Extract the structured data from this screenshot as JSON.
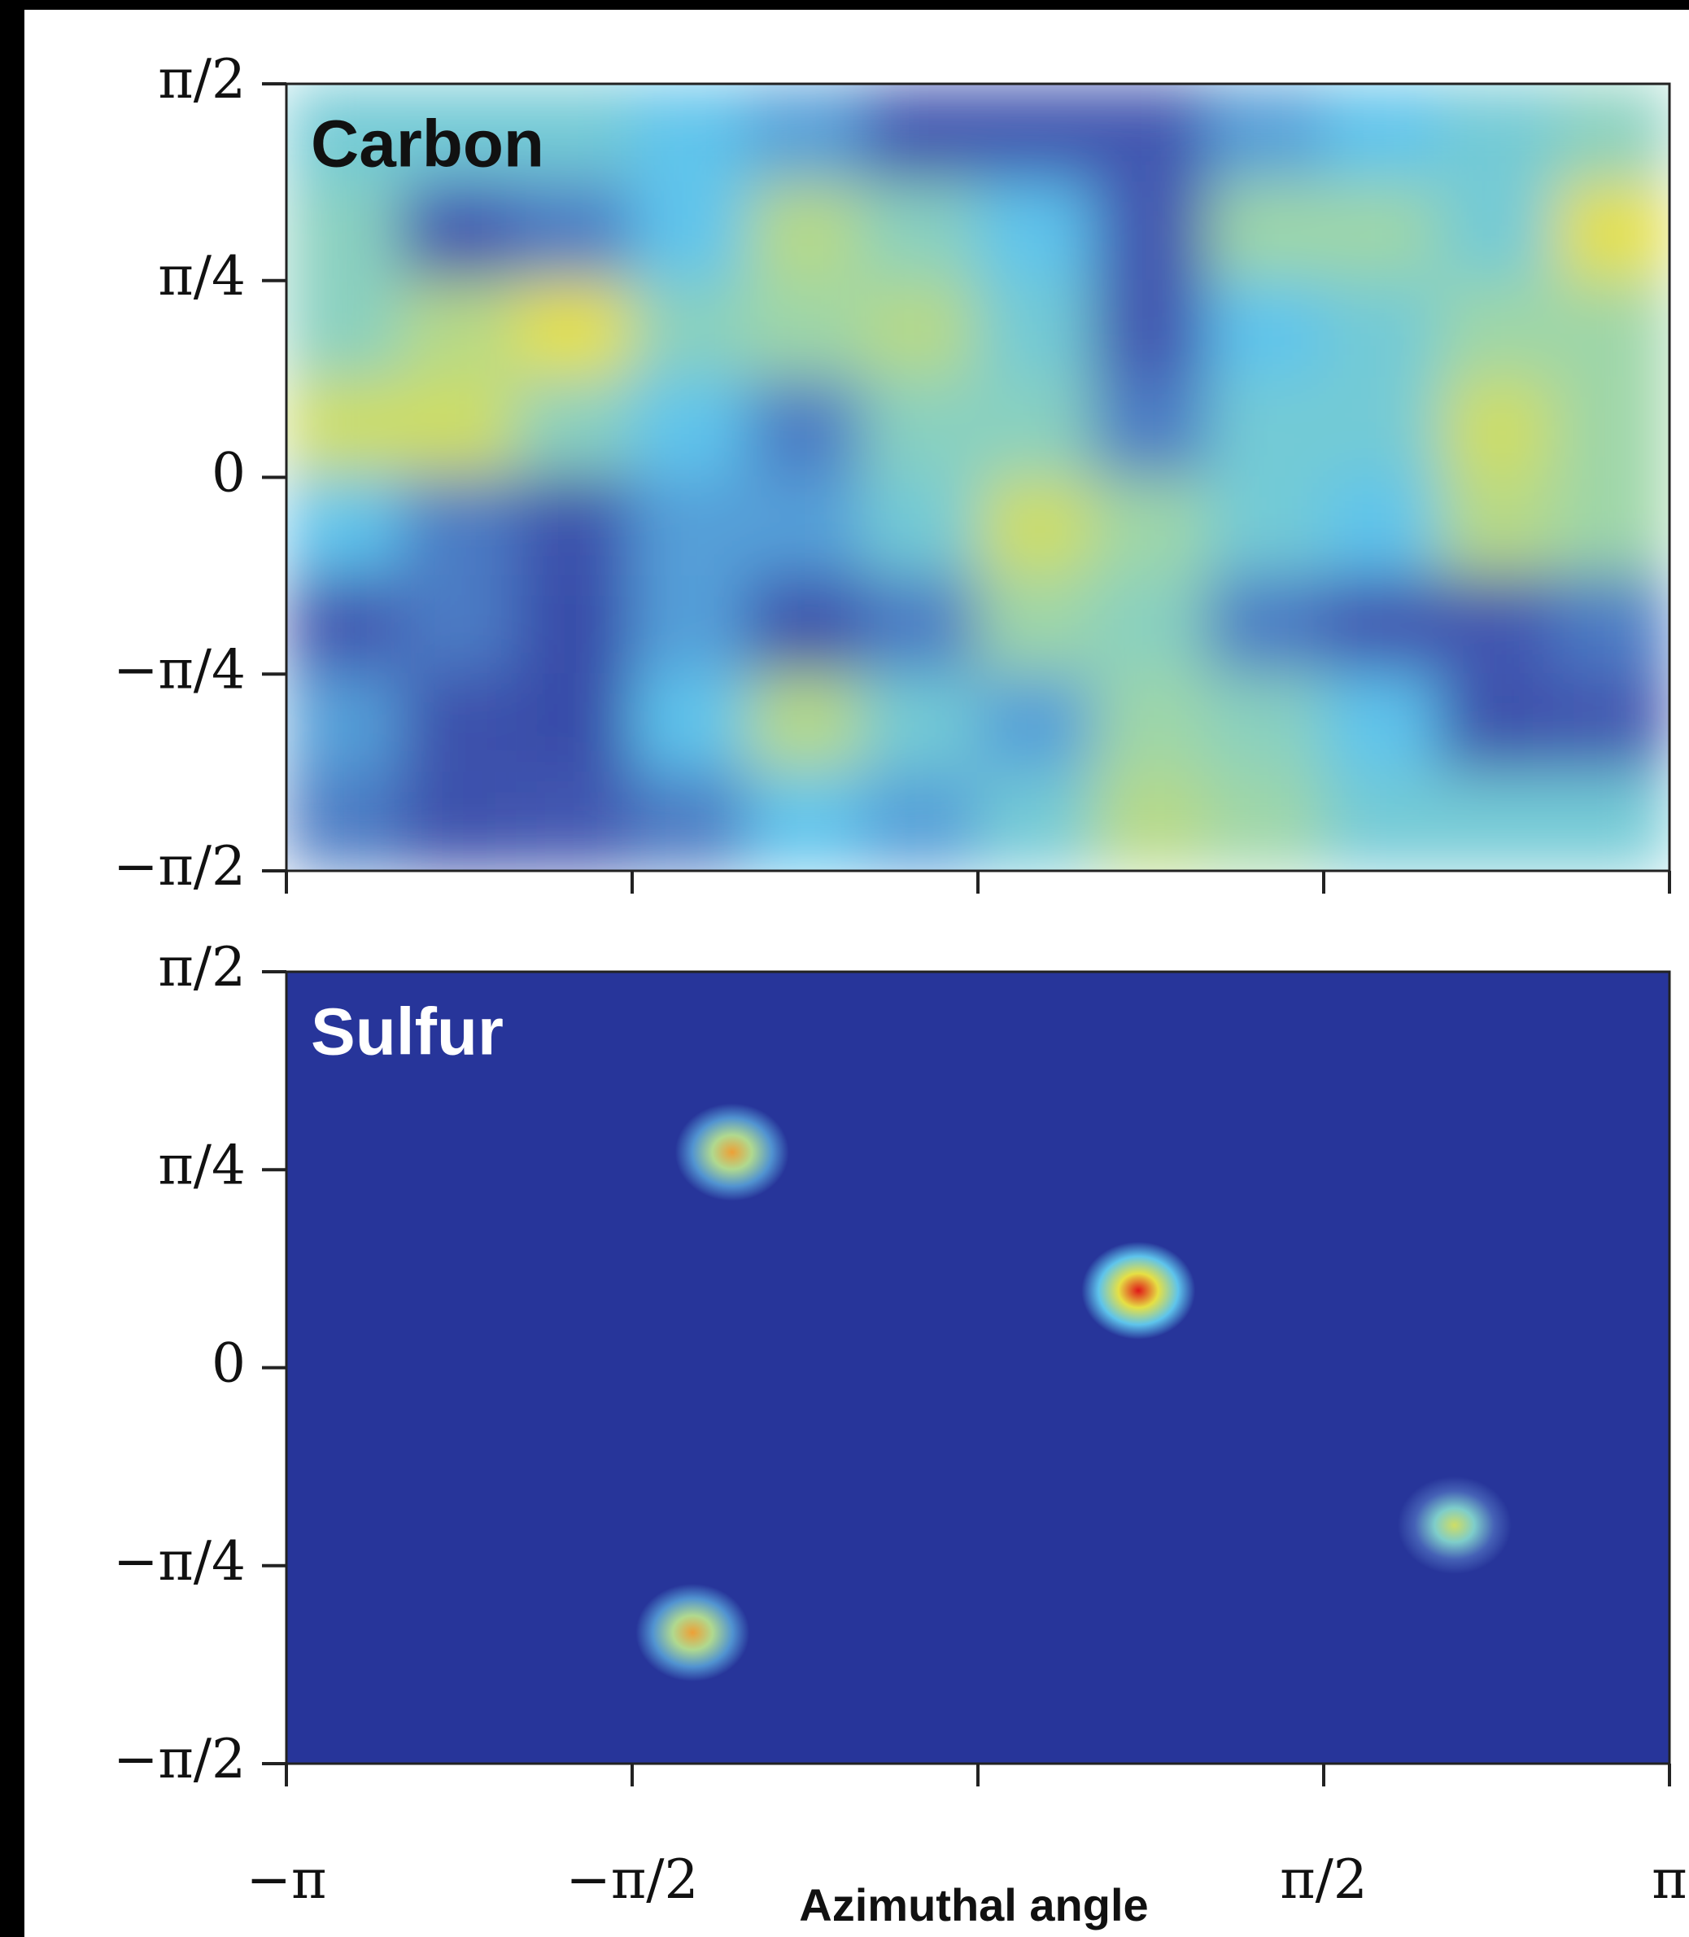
{
  "chart_data": [
    {
      "type": "heatmap",
      "label": "Carbon",
      "x": [
        -2.8798,
        -2.3562,
        -1.8326,
        -1.309,
        -0.7854,
        -0.2618,
        0.2618,
        0.7854,
        1.309,
        1.8326,
        2.3562,
        2.8798
      ],
      "y": [
        1.3744,
        0.9817,
        0.589,
        0.1963,
        -0.1963,
        -0.589,
        -0.9817,
        -1.3744
      ],
      "z": [
        [
          0.5,
          0.5,
          0.5,
          0.45,
          0.4,
          0.3,
          0.3,
          0.3,
          0.4,
          0.45,
          0.5,
          0.55
        ],
        [
          0.55,
          0.3,
          0.35,
          0.45,
          0.65,
          0.55,
          0.45,
          0.3,
          0.6,
          0.6,
          0.5,
          0.75
        ],
        [
          0.55,
          0.65,
          0.75,
          0.55,
          0.6,
          0.65,
          0.5,
          0.3,
          0.45,
          0.5,
          0.6,
          0.6
        ],
        [
          0.7,
          0.7,
          0.55,
          0.45,
          0.35,
          0.55,
          0.55,
          0.35,
          0.5,
          0.5,
          0.7,
          0.6
        ],
        [
          0.45,
          0.35,
          0.25,
          0.4,
          0.4,
          0.5,
          0.7,
          0.6,
          0.5,
          0.45,
          0.65,
          0.6
        ],
        [
          0.3,
          0.35,
          0.2,
          0.4,
          0.25,
          0.35,
          0.6,
          0.55,
          0.35,
          0.3,
          0.3,
          0.35
        ],
        [
          0.4,
          0.25,
          0.2,
          0.45,
          0.65,
          0.5,
          0.4,
          0.6,
          0.55,
          0.45,
          0.25,
          0.3
        ],
        [
          0.35,
          0.25,
          0.3,
          0.35,
          0.45,
          0.4,
          0.5,
          0.65,
          0.6,
          0.5,
          0.5,
          0.5
        ]
      ],
      "zlim": [
        0,
        1
      ],
      "xlim": [
        -3.1416,
        3.1416
      ],
      "ylim": [
        -1.5708,
        1.5708
      ],
      "xticks": [
        -3.1416,
        -1.5708,
        0,
        1.5708,
        3.1416
      ],
      "yticks": [
        {
          "value": -1.5708,
          "label": "−π/2"
        },
        {
          "value": -0.7854,
          "label": "−π/4"
        },
        0,
        {
          "value": 0.7854,
          "label": "π/4"
        },
        {
          "value": 1.5708,
          "label": "π/2"
        }
      ]
    },
    {
      "type": "scatter",
      "label": "Sulfur",
      "xlabel": "Azimuthal angle",
      "x": [
        -1.117,
        0.729,
        2.165,
        -1.296
      ],
      "y": [
        0.855,
        0.306,
        -0.625,
        -1.051
      ],
      "values": [
        0.85,
        1.0,
        0.7,
        0.85
      ],
      "zlim": [
        0,
        1
      ],
      "xlim": [
        -3.1416,
        3.1416
      ],
      "ylim": [
        -1.5708,
        1.5708
      ],
      "xticks": [
        {
          "value": -3.1416,
          "label": "−π"
        },
        {
          "value": -1.5708,
          "label": "−π/2"
        },
        0,
        {
          "value": 1.5708,
          "label": "π/2"
        },
        {
          "value": 3.1416,
          "label": "π"
        }
      ],
      "yticks": [
        {
          "value": -1.5708,
          "label": "−π/2"
        },
        {
          "value": -0.7854,
          "label": "−π/4"
        },
        0,
        {
          "value": 0.7854,
          "label": "π/4"
        },
        {
          "value": 1.5708,
          "label": "π/2"
        }
      ]
    }
  ]
}
